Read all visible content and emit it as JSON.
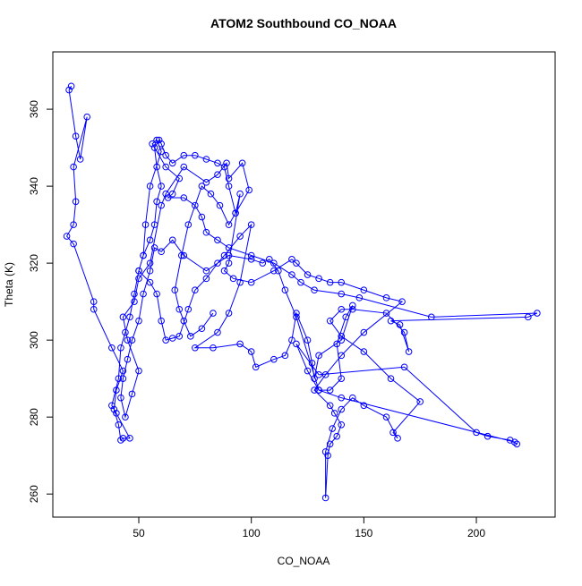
{
  "chart_data": {
    "type": "line-scatter",
    "title": "ATOM2 Southbound CO_NOAA",
    "xlabel": "CO_NOAA",
    "ylabel": "Theta (K)",
    "xlim": [
      11.8,
      235
    ],
    "ylim": [
      254,
      374.9
    ],
    "xticks": [
      50,
      100,
      150,
      200
    ],
    "yticks": [
      260,
      280,
      300,
      320,
      340,
      360
    ],
    "series": [
      {
        "color": "#0000ff",
        "x": [
          20,
          19,
          22,
          24,
          27,
          21,
          22,
          21,
          18,
          21,
          30,
          30,
          38,
          43,
          40,
          39,
          41,
          42,
          43,
          46,
          40,
          38,
          41,
          42,
          44,
          46,
          48,
          50,
          52,
          55,
          57,
          58,
          60,
          58,
          57,
          59,
          60,
          62,
          65,
          70,
          75,
          80,
          85,
          88,
          90,
          93,
          95,
          90,
          88,
          92,
          100,
          110,
          118,
          120,
          125,
          130,
          135,
          140,
          150,
          160,
          167,
          150,
          140,
          133,
          128,
          135,
          137,
          140,
          138,
          135,
          134,
          133,
          133,
          136,
          140,
          145,
          150,
          160,
          165,
          163,
          175,
          162,
          150,
          140,
          135,
          140,
          145,
          160,
          168,
          170,
          166,
          162,
          223,
          227,
          180,
          148,
          140,
          128,
          122,
          118,
          110,
          100,
          90,
          85,
          80,
          78,
          75,
          70,
          63,
          65,
          68,
          62,
          56,
          58,
          60,
          55,
          53,
          52,
          50,
          55,
          58,
          60,
          62,
          65,
          68,
          72,
          75,
          80,
          85,
          88,
          95,
          100,
          95,
          90,
          85,
          75,
          83,
          95,
          100,
          102,
          110,
          115,
          118,
          120,
          125,
          127,
          128,
          130,
          140,
          145,
          142,
          138,
          140,
          135,
          130,
          125,
          120,
          130,
          168,
          200,
          205,
          215,
          218,
          217,
          140,
          130,
          120,
          115,
          112,
          108,
          105,
          100,
          90,
          80,
          70,
          65,
          60,
          57,
          55,
          52,
          50,
          47,
          45,
          43,
          42,
          44,
          47,
          50,
          45,
          43,
          48,
          50,
          55,
          60,
          62,
          70,
          80,
          85,
          89,
          90,
          96,
          99,
          93,
          90,
          86,
          82,
          78,
          72,
          69,
          66,
          68,
          70,
          73,
          78,
          83
        ],
        "values": [
          366,
          365,
          353,
          347,
          358,
          345,
          336,
          330,
          327,
          325,
          310,
          308,
          298,
          292,
          287,
          282,
          278,
          274,
          274.5,
          274.5,
          281,
          283,
          290,
          298,
          302,
          306,
          312,
          318,
          322,
          326,
          330,
          336,
          340,
          345,
          350,
          352,
          351,
          348,
          346,
          348,
          348,
          347,
          346,
          345,
          340,
          333,
          338,
          320,
          318,
          316,
          315,
          318,
          321,
          320,
          317,
          316,
          315,
          315,
          313,
          311,
          310,
          302,
          296,
          291,
          287,
          283,
          281,
          278,
          275,
          273,
          270,
          259,
          271,
          277,
          282,
          285,
          283,
          280,
          274.5,
          276,
          284,
          290,
          297,
          301,
          305,
          308,
          308,
          307,
          302,
          297,
          304,
          305,
          306,
          307,
          306,
          311,
          312,
          313,
          315,
          317,
          320,
          322,
          324,
          326,
          328,
          332,
          335,
          337,
          337,
          338,
          342,
          345,
          351,
          352,
          349,
          340,
          330,
          322,
          318,
          315,
          312,
          305,
          300,
          300.5,
          301,
          308,
          313,
          316,
          320,
          322,
          327,
          330,
          315,
          307,
          302,
          298,
          298,
          299,
          297,
          293,
          295,
          296,
          300,
          307,
          300,
          294,
          290,
          296,
          300,
          309,
          306,
          299,
          290,
          287,
          287,
          292,
          299,
          291,
          293,
          276,
          275,
          274,
          273,
          273.5,
          285,
          287,
          306,
          313,
          318,
          321,
          320,
          321,
          322,
          318,
          322,
          326,
          323,
          324,
          318,
          312,
          305,
          300,
          295,
          290,
          285,
          280,
          286,
          292,
          300,
          306,
          310,
          316,
          320,
          335,
          338,
          345,
          341,
          343,
          346,
          342,
          346,
          339,
          333,
          330,
          335,
          338,
          340,
          330,
          322,
          313,
          308,
          305,
          301,
          303,
          307
        ]
      }
    ]
  }
}
